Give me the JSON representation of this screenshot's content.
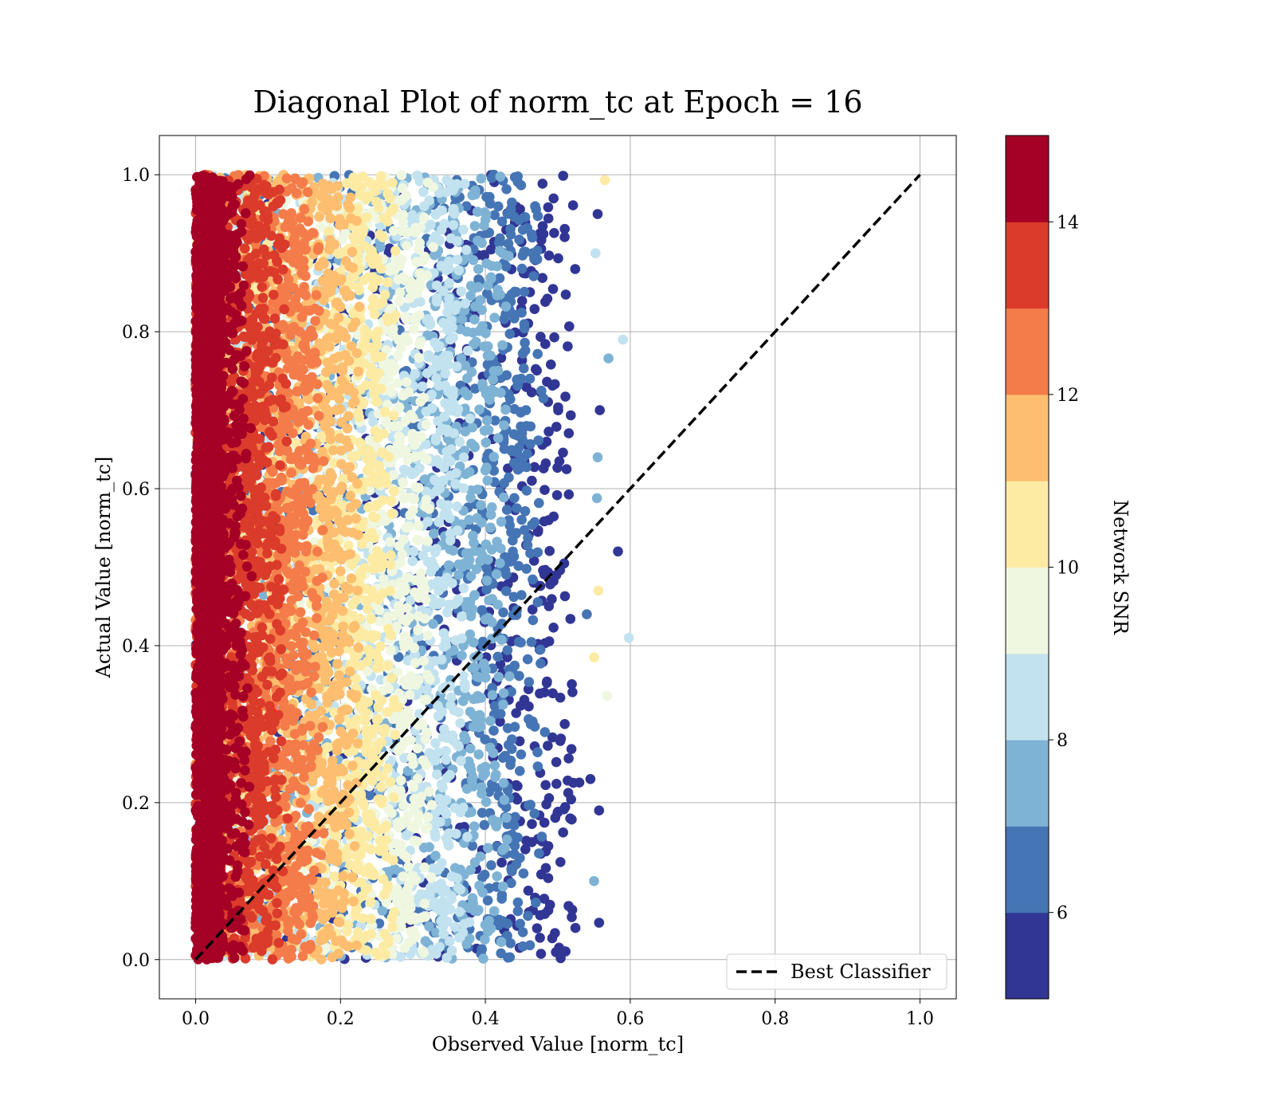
{
  "chart_data": {
    "type": "scatter",
    "title": "Diagonal Plot of norm_tc at Epoch = 16",
    "xlabel": "Observed Value [norm_tc]",
    "ylabel": "Actual Value [norm_tc]",
    "xlim": [
      -0.05,
      1.05
    ],
    "ylim": [
      -0.05,
      1.05
    ],
    "xticks": [
      "0.0",
      "0.2",
      "0.4",
      "0.6",
      "0.8",
      "1.0"
    ],
    "yticks": [
      "0.0",
      "0.2",
      "0.4",
      "0.6",
      "0.8",
      "1.0"
    ],
    "grid": true,
    "legend": {
      "position": "lower right",
      "entries": [
        {
          "label": "Best Classifier",
          "style": "dashed",
          "color": "#000000"
        }
      ]
    },
    "reference_line": {
      "label": "Best Classifier",
      "x": [
        0.0,
        1.0
      ],
      "y": [
        0.0,
        1.0
      ]
    },
    "colorbar": {
      "label": "Network SNR",
      "range": [
        5,
        15
      ],
      "ticks": [
        "6",
        "8",
        "10",
        "12",
        "14"
      ],
      "colors": [
        "#313695",
        "#4575b4",
        "#7fb3d5",
        "#c2e2ef",
        "#f0f7e0",
        "#fdeba4",
        "#fdbe70",
        "#f47c4a",
        "#db3b2a",
        "#a50026"
      ]
    },
    "scatter_description": {
      "observed_range": [
        0.0,
        0.6
      ],
      "actual_range": [
        0.0,
        1.0
      ],
      "trend": "high SNR points cluster near observed = 0; low SNR points extend to observed ≈ 0.5–0.6"
    },
    "outliers": [
      {
        "x": 0.598,
        "y": 0.41,
        "snr": 8.5
      },
      {
        "x": 0.583,
        "y": 0.52,
        "snr": 5.5
      },
      {
        "x": 0.59,
        "y": 0.79,
        "snr": 8.5
      },
      {
        "x": 0.568,
        "y": 0.336,
        "snr": 9.5
      },
      {
        "x": 0.565,
        "y": 0.993,
        "snr": 10.5
      },
      {
        "x": 0.557,
        "y": 0.047,
        "snr": 5.5
      },
      {
        "x": 0.557,
        "y": 0.19,
        "snr": 5.5
      },
      {
        "x": 0.555,
        "y": 0.95,
        "snr": 5.5
      },
      {
        "x": 0.556,
        "y": 0.47,
        "snr": 10.5
      },
      {
        "x": 0.55,
        "y": 0.385,
        "snr": 10.5
      },
      {
        "x": 0.558,
        "y": 0.7,
        "snr": 5.5
      },
      {
        "x": 0.555,
        "y": 0.64,
        "snr": 7.5
      },
      {
        "x": 0.554,
        "y": 0.588,
        "snr": 7.5
      },
      {
        "x": 0.552,
        "y": 0.9,
        "snr": 8
      },
      {
        "x": 0.57,
        "y": 0.766,
        "snr": 7.5
      },
      {
        "x": 0.55,
        "y": 0.1,
        "snr": 7.5
      },
      {
        "x": 0.545,
        "y": 0.23,
        "snr": 5.5
      },
      {
        "x": 0.54,
        "y": 0.44,
        "snr": 6.5
      }
    ]
  }
}
